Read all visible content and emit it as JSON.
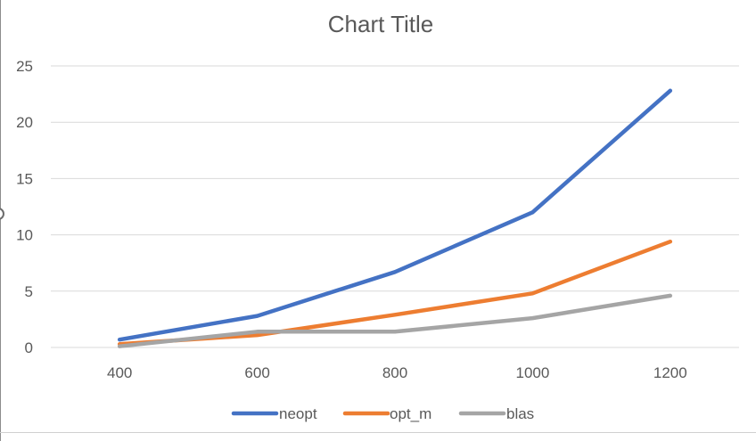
{
  "chart_data": {
    "type": "line",
    "title": "Chart Title",
    "xlabel": "",
    "ylabel": "",
    "categories": [
      "400",
      "600",
      "800",
      "1000",
      "1200"
    ],
    "ylim": [
      0,
      25
    ],
    "yticks": [
      0,
      5,
      10,
      15,
      20,
      25
    ],
    "grid": true,
    "legend_position": "bottom",
    "series": [
      {
        "name": "neopt",
        "color": "#4472C4",
        "values": [
          0.7,
          2.8,
          6.7,
          12.0,
          22.8
        ]
      },
      {
        "name": "opt_m",
        "color": "#ED7D31",
        "values": [
          0.3,
          1.1,
          2.9,
          4.8,
          9.4
        ]
      },
      {
        "name": "blas",
        "color": "#A5A5A5",
        "values": [
          0.1,
          1.4,
          1.4,
          2.6,
          4.6
        ]
      }
    ]
  }
}
